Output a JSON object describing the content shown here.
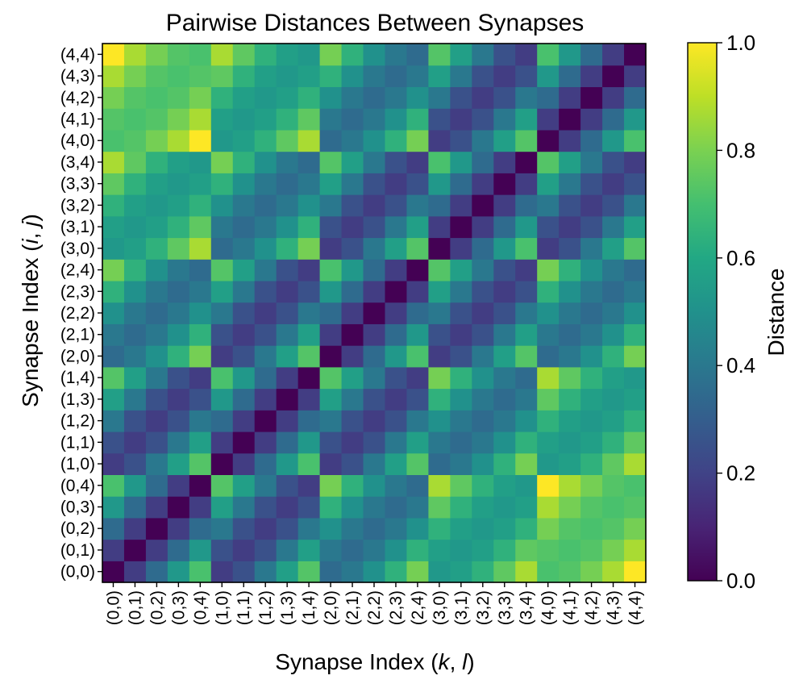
{
  "chart_data": {
    "type": "heatmap",
    "title": "Pairwise Distances Between Synapses",
    "xlabel_prefix": "Synapse Index (",
    "xlabel_vars": [
      "k",
      "l"
    ],
    "xlabel_suffix": ")",
    "ylabel_prefix": "Synapse Index (",
    "ylabel_vars": [
      "i",
      "j"
    ],
    "ylabel_suffix": ")",
    "x_categories": [
      "(0,0)",
      "(0,1)",
      "(0,2)",
      "(0,3)",
      "(0,4)",
      "(1,0)",
      "(1,1)",
      "(1,2)",
      "(1,3)",
      "(1,4)",
      "(2,0)",
      "(2,1)",
      "(2,2)",
      "(2,3)",
      "(2,4)",
      "(3,0)",
      "(3,1)",
      "(3,2)",
      "(3,3)",
      "(3,4)",
      "(4,0)",
      "(4,1)",
      "(4,2)",
      "(4,3)",
      "(4,4)"
    ],
    "y_categories": [
      "(0,0)",
      "(0,1)",
      "(0,2)",
      "(0,3)",
      "(0,4)",
      "(1,0)",
      "(1,1)",
      "(1,2)",
      "(1,3)",
      "(1,4)",
      "(2,0)",
      "(2,1)",
      "(2,2)",
      "(2,3)",
      "(2,4)",
      "(3,0)",
      "(3,1)",
      "(3,2)",
      "(3,3)",
      "(3,4)",
      "(4,0)",
      "(4,1)",
      "(4,2)",
      "(4,3)",
      "(4,4)"
    ],
    "y_origin": "bottom",
    "colormap": "viridis",
    "vmin": 0.0,
    "vmax": 1.0,
    "colorbar_label": "Distance",
    "colorbar_ticks": [
      "0.0",
      "0.2",
      "0.4",
      "0.6",
      "0.8",
      "1.0"
    ],
    "values": [
      [
        0.0,
        0.18,
        0.35,
        0.53,
        0.71,
        0.18,
        0.25,
        0.4,
        0.56,
        0.73,
        0.35,
        0.4,
        0.5,
        0.64,
        0.79,
        0.53,
        0.56,
        0.64,
        0.75,
        0.87,
        0.71,
        0.73,
        0.79,
        0.87,
        1.0
      ],
      [
        0.18,
        0.0,
        0.18,
        0.35,
        0.53,
        0.25,
        0.18,
        0.25,
        0.4,
        0.56,
        0.4,
        0.35,
        0.4,
        0.5,
        0.64,
        0.56,
        0.53,
        0.56,
        0.64,
        0.75,
        0.73,
        0.71,
        0.73,
        0.79,
        0.87
      ],
      [
        0.35,
        0.18,
        0.0,
        0.18,
        0.35,
        0.4,
        0.25,
        0.18,
        0.25,
        0.4,
        0.5,
        0.4,
        0.35,
        0.4,
        0.5,
        0.64,
        0.56,
        0.53,
        0.56,
        0.64,
        0.79,
        0.73,
        0.71,
        0.73,
        0.79
      ],
      [
        0.53,
        0.35,
        0.18,
        0.0,
        0.18,
        0.56,
        0.4,
        0.25,
        0.18,
        0.25,
        0.64,
        0.5,
        0.4,
        0.35,
        0.4,
        0.75,
        0.64,
        0.56,
        0.53,
        0.56,
        0.87,
        0.79,
        0.73,
        0.71,
        0.73
      ],
      [
        0.71,
        0.53,
        0.35,
        0.18,
        0.0,
        0.73,
        0.56,
        0.4,
        0.25,
        0.18,
        0.79,
        0.64,
        0.5,
        0.4,
        0.35,
        0.87,
        0.75,
        0.64,
        0.56,
        0.53,
        1.0,
        0.87,
        0.79,
        0.73,
        0.71
      ],
      [
        0.18,
        0.25,
        0.4,
        0.56,
        0.73,
        0.0,
        0.18,
        0.35,
        0.53,
        0.71,
        0.18,
        0.25,
        0.4,
        0.56,
        0.73,
        0.35,
        0.4,
        0.5,
        0.64,
        0.79,
        0.53,
        0.56,
        0.64,
        0.75,
        0.87
      ],
      [
        0.25,
        0.18,
        0.25,
        0.4,
        0.56,
        0.18,
        0.0,
        0.18,
        0.35,
        0.53,
        0.25,
        0.18,
        0.25,
        0.4,
        0.56,
        0.4,
        0.35,
        0.4,
        0.5,
        0.64,
        0.56,
        0.53,
        0.56,
        0.64,
        0.75
      ],
      [
        0.4,
        0.25,
        0.18,
        0.25,
        0.4,
        0.35,
        0.18,
        0.0,
        0.18,
        0.35,
        0.4,
        0.25,
        0.18,
        0.25,
        0.4,
        0.5,
        0.4,
        0.35,
        0.4,
        0.5,
        0.64,
        0.56,
        0.53,
        0.56,
        0.64
      ],
      [
        0.56,
        0.4,
        0.25,
        0.18,
        0.25,
        0.53,
        0.35,
        0.18,
        0.0,
        0.18,
        0.56,
        0.4,
        0.25,
        0.18,
        0.25,
        0.64,
        0.5,
        0.4,
        0.35,
        0.4,
        0.75,
        0.64,
        0.56,
        0.53,
        0.56
      ],
      [
        0.73,
        0.56,
        0.4,
        0.25,
        0.18,
        0.71,
        0.53,
        0.35,
        0.18,
        0.0,
        0.73,
        0.56,
        0.4,
        0.25,
        0.18,
        0.79,
        0.64,
        0.5,
        0.4,
        0.35,
        0.87,
        0.75,
        0.64,
        0.56,
        0.53
      ],
      [
        0.35,
        0.4,
        0.5,
        0.64,
        0.79,
        0.18,
        0.25,
        0.4,
        0.56,
        0.73,
        0.0,
        0.18,
        0.35,
        0.53,
        0.71,
        0.18,
        0.25,
        0.4,
        0.56,
        0.73,
        0.35,
        0.4,
        0.5,
        0.64,
        0.79
      ],
      [
        0.4,
        0.35,
        0.4,
        0.5,
        0.64,
        0.25,
        0.18,
        0.25,
        0.4,
        0.56,
        0.18,
        0.0,
        0.18,
        0.35,
        0.53,
        0.25,
        0.18,
        0.25,
        0.4,
        0.56,
        0.4,
        0.35,
        0.4,
        0.5,
        0.64
      ],
      [
        0.5,
        0.4,
        0.35,
        0.4,
        0.5,
        0.4,
        0.25,
        0.18,
        0.25,
        0.4,
        0.35,
        0.18,
        0.0,
        0.18,
        0.35,
        0.4,
        0.25,
        0.18,
        0.25,
        0.4,
        0.5,
        0.4,
        0.35,
        0.4,
        0.5
      ],
      [
        0.64,
        0.5,
        0.4,
        0.35,
        0.4,
        0.56,
        0.4,
        0.25,
        0.18,
        0.25,
        0.53,
        0.35,
        0.18,
        0.0,
        0.18,
        0.56,
        0.4,
        0.25,
        0.18,
        0.25,
        0.64,
        0.5,
        0.4,
        0.35,
        0.4
      ],
      [
        0.79,
        0.64,
        0.5,
        0.4,
        0.35,
        0.73,
        0.56,
        0.4,
        0.25,
        0.18,
        0.71,
        0.53,
        0.35,
        0.18,
        0.0,
        0.73,
        0.56,
        0.4,
        0.25,
        0.18,
        0.79,
        0.64,
        0.5,
        0.4,
        0.35
      ],
      [
        0.53,
        0.56,
        0.64,
        0.75,
        0.87,
        0.35,
        0.4,
        0.5,
        0.64,
        0.79,
        0.18,
        0.25,
        0.4,
        0.56,
        0.73,
        0.0,
        0.18,
        0.35,
        0.53,
        0.71,
        0.18,
        0.25,
        0.4,
        0.56,
        0.73
      ],
      [
        0.56,
        0.53,
        0.56,
        0.64,
        0.75,
        0.4,
        0.35,
        0.4,
        0.5,
        0.64,
        0.25,
        0.18,
        0.25,
        0.4,
        0.56,
        0.18,
        0.0,
        0.18,
        0.35,
        0.53,
        0.25,
        0.18,
        0.25,
        0.4,
        0.56
      ],
      [
        0.64,
        0.56,
        0.53,
        0.56,
        0.64,
        0.5,
        0.4,
        0.35,
        0.4,
        0.5,
        0.4,
        0.25,
        0.18,
        0.25,
        0.4,
        0.35,
        0.18,
        0.0,
        0.18,
        0.35,
        0.4,
        0.25,
        0.18,
        0.25,
        0.4
      ],
      [
        0.75,
        0.64,
        0.56,
        0.53,
        0.56,
        0.64,
        0.5,
        0.4,
        0.35,
        0.4,
        0.56,
        0.4,
        0.25,
        0.18,
        0.25,
        0.53,
        0.35,
        0.18,
        0.0,
        0.18,
        0.56,
        0.4,
        0.25,
        0.18,
        0.25
      ],
      [
        0.87,
        0.75,
        0.64,
        0.56,
        0.53,
        0.79,
        0.64,
        0.5,
        0.4,
        0.35,
        0.73,
        0.56,
        0.4,
        0.25,
        0.18,
        0.71,
        0.53,
        0.35,
        0.18,
        0.0,
        0.73,
        0.56,
        0.4,
        0.25,
        0.18
      ],
      [
        0.71,
        0.73,
        0.79,
        0.87,
        1.0,
        0.53,
        0.56,
        0.64,
        0.75,
        0.87,
        0.35,
        0.4,
        0.5,
        0.64,
        0.79,
        0.18,
        0.25,
        0.4,
        0.56,
        0.73,
        0.0,
        0.18,
        0.35,
        0.53,
        0.71
      ],
      [
        0.73,
        0.71,
        0.73,
        0.79,
        0.87,
        0.56,
        0.53,
        0.56,
        0.64,
        0.75,
        0.4,
        0.35,
        0.4,
        0.5,
        0.64,
        0.25,
        0.18,
        0.25,
        0.4,
        0.56,
        0.18,
        0.0,
        0.18,
        0.35,
        0.53
      ],
      [
        0.79,
        0.73,
        0.71,
        0.73,
        0.79,
        0.64,
        0.56,
        0.53,
        0.56,
        0.64,
        0.5,
        0.4,
        0.35,
        0.4,
        0.5,
        0.4,
        0.25,
        0.18,
        0.25,
        0.4,
        0.35,
        0.18,
        0.0,
        0.18,
        0.35
      ],
      [
        0.87,
        0.79,
        0.73,
        0.71,
        0.73,
        0.75,
        0.64,
        0.56,
        0.53,
        0.56,
        0.64,
        0.5,
        0.4,
        0.35,
        0.4,
        0.56,
        0.4,
        0.25,
        0.18,
        0.25,
        0.53,
        0.35,
        0.18,
        0.0,
        0.18
      ],
      [
        1.0,
        0.87,
        0.79,
        0.73,
        0.71,
        0.87,
        0.75,
        0.64,
        0.56,
        0.53,
        0.79,
        0.64,
        0.5,
        0.4,
        0.35,
        0.73,
        0.56,
        0.4,
        0.25,
        0.18,
        0.71,
        0.53,
        0.35,
        0.18,
        0.0
      ]
    ]
  }
}
